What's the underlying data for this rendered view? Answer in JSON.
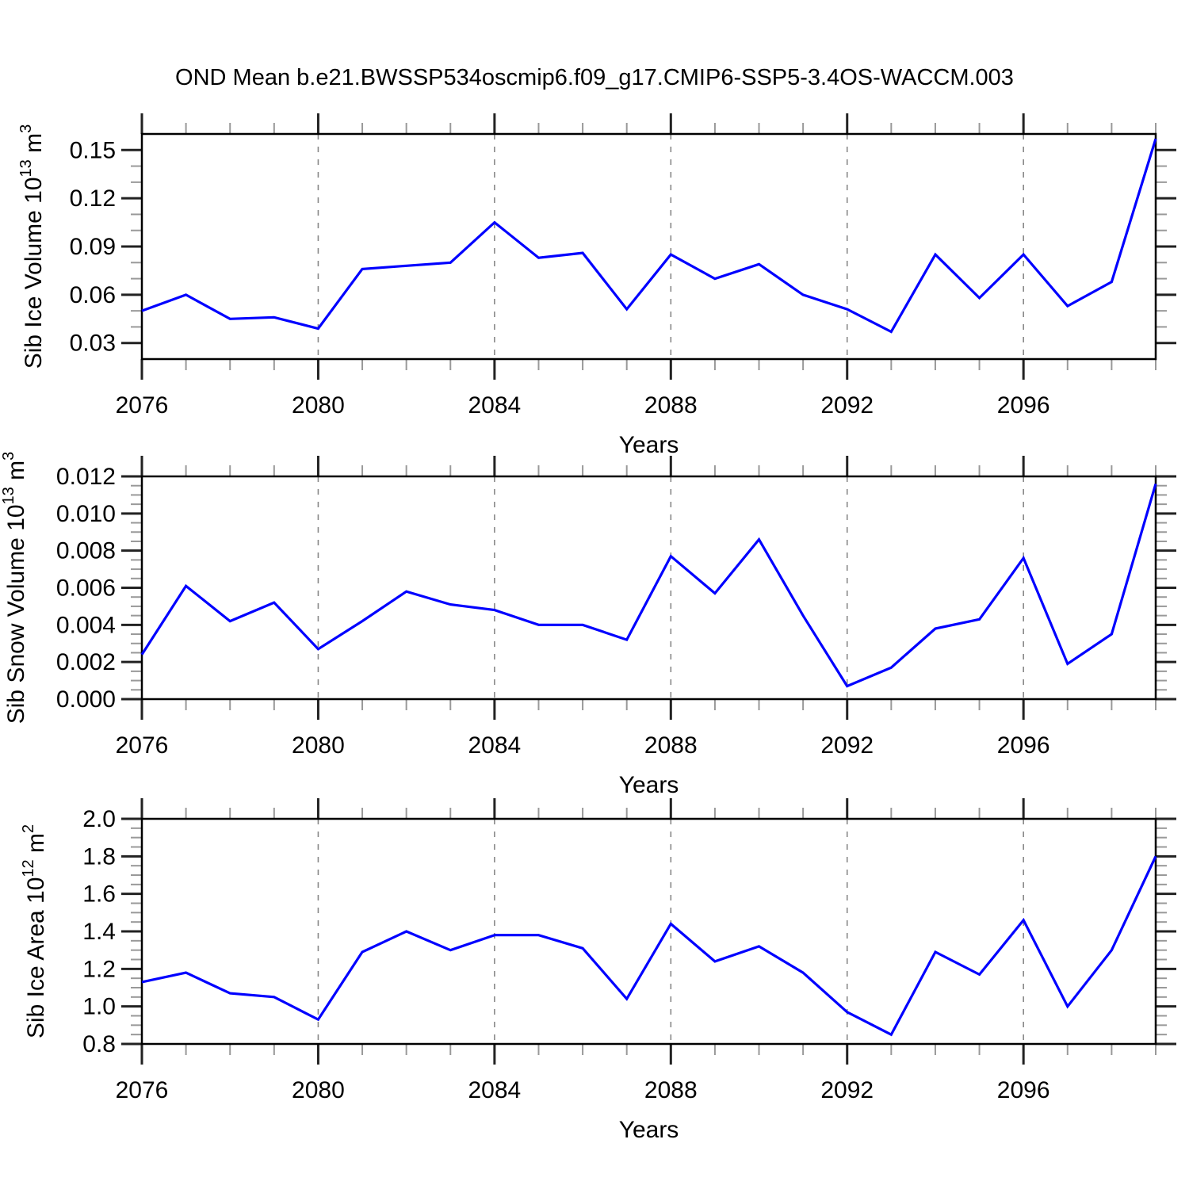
{
  "title": "OND Mean b.e21.BWSSP534oscmip6.f09_g17.CMIP6-SSP5-3.4OS-WACCM.003",
  "style": {
    "line_color": "#0000ff",
    "grid_color": "#888888",
    "axis_color": "#000000",
    "tick_major_color": "#222222",
    "tick_minor_color": "#999999",
    "text_color": "#000000",
    "background": "#ffffff"
  },
  "chart_data": [
    {
      "type": "line",
      "ylabel": "Sib Ice Volume 10¹³ m³",
      "ylabel_parts": [
        {
          "text": "Sib Ice Volume 10",
          "sup": false
        },
        {
          "text": "13",
          "sup": true
        },
        {
          "text": " m",
          "sup": false
        },
        {
          "text": "3",
          "sup": true
        }
      ],
      "xlabel": "Years",
      "x": [
        2076,
        2077,
        2078,
        2079,
        2080,
        2081,
        2082,
        2083,
        2084,
        2085,
        2086,
        2087,
        2088,
        2089,
        2090,
        2091,
        2092,
        2093,
        2094,
        2095,
        2096,
        2097,
        2098,
        2099
      ],
      "values": [
        0.05,
        0.06,
        0.045,
        0.046,
        0.039,
        0.076,
        0.078,
        0.08,
        0.105,
        0.083,
        0.086,
        0.051,
        0.085,
        0.07,
        0.079,
        0.06,
        0.051,
        0.037,
        0.085,
        0.058,
        0.085,
        0.053,
        0.068,
        0.157
      ],
      "xlim": [
        2076,
        2099
      ],
      "ylim": [
        0.02,
        0.16
      ],
      "ytick_values": [
        0.15,
        0.12,
        0.09,
        0.06,
        0.03
      ],
      "ytick_labels": [
        "0.15",
        "0.12",
        "0.09",
        "0.06",
        "0.03"
      ],
      "ytick_minor_step": 0.01,
      "xtick_values": [
        2076,
        2080,
        2084,
        2088,
        2092,
        2096
      ],
      "xtick_labels": [
        "2076",
        "2080",
        "2084",
        "2088",
        "2092",
        "2096"
      ],
      "xtick_minor_step": 1,
      "grid_x": [
        2080,
        2084,
        2088,
        2092,
        2096
      ],
      "grid_on": true,
      "legend": null
    },
    {
      "type": "line",
      "ylabel": "Sib Snow Volume 10¹³ m³",
      "ylabel_parts": [
        {
          "text": "Sib Snow Volume 10",
          "sup": false
        },
        {
          "text": "13",
          "sup": true
        },
        {
          "text": " m",
          "sup": false
        },
        {
          "text": "3",
          "sup": true
        }
      ],
      "xlabel": "Years",
      "x": [
        2076,
        2077,
        2078,
        2079,
        2080,
        2081,
        2082,
        2083,
        2084,
        2085,
        2086,
        2087,
        2088,
        2089,
        2090,
        2091,
        2092,
        2093,
        2094,
        2095,
        2096,
        2097,
        2098,
        2099
      ],
      "values": [
        0.0024,
        0.0061,
        0.0042,
        0.0052,
        0.0027,
        0.0042,
        0.0058,
        0.0051,
        0.0048,
        0.004,
        0.004,
        0.0032,
        0.0077,
        0.0057,
        0.0086,
        0.0045,
        0.0007,
        0.0017,
        0.0038,
        0.0043,
        0.0076,
        0.0019,
        0.0035,
        0.0116
      ],
      "xlim": [
        2076,
        2099
      ],
      "ylim": [
        0.0,
        0.012
      ],
      "ytick_values": [
        0.012,
        0.01,
        0.008,
        0.006,
        0.004,
        0.002,
        0.0
      ],
      "ytick_labels": [
        "0.012",
        "0.010",
        "0.008",
        "0.006",
        "0.004",
        "0.002",
        "0.000"
      ],
      "ytick_minor_step": 0.0005,
      "xtick_values": [
        2076,
        2080,
        2084,
        2088,
        2092,
        2096
      ],
      "xtick_labels": [
        "2076",
        "2080",
        "2084",
        "2088",
        "2092",
        "2096"
      ],
      "xtick_minor_step": 1,
      "grid_x": [
        2080,
        2084,
        2088,
        2092,
        2096
      ],
      "grid_on": true,
      "legend": null
    },
    {
      "type": "line",
      "ylabel": "Sib Ice Area 10¹² m²",
      "ylabel_parts": [
        {
          "text": "Sib Ice Area 10",
          "sup": false
        },
        {
          "text": "12",
          "sup": true
        },
        {
          "text": " m",
          "sup": false
        },
        {
          "text": "2",
          "sup": true
        }
      ],
      "xlabel": "Years",
      "x": [
        2076,
        2077,
        2078,
        2079,
        2080,
        2081,
        2082,
        2083,
        2084,
        2085,
        2086,
        2087,
        2088,
        2089,
        2090,
        2091,
        2092,
        2093,
        2094,
        2095,
        2096,
        2097,
        2098,
        2099
      ],
      "values": [
        1.13,
        1.18,
        1.07,
        1.05,
        0.93,
        1.29,
        1.4,
        1.3,
        1.38,
        1.38,
        1.31,
        1.04,
        1.44,
        1.24,
        1.32,
        1.18,
        0.97,
        0.85,
        1.29,
        1.17,
        1.46,
        1.0,
        1.3,
        1.8
      ],
      "xlim": [
        2076,
        2099
      ],
      "ylim": [
        0.8,
        2.0
      ],
      "ytick_values": [
        2.0,
        1.8,
        1.6,
        1.4,
        1.2,
        1.0,
        0.8
      ],
      "ytick_labels": [
        "2.0",
        "1.8",
        "1.6",
        "1.4",
        "1.2",
        "1.0",
        "0.8"
      ],
      "ytick_minor_step": 0.05,
      "xtick_values": [
        2076,
        2080,
        2084,
        2088,
        2092,
        2096
      ],
      "xtick_labels": [
        "2076",
        "2080",
        "2084",
        "2088",
        "2092",
        "2096"
      ],
      "xtick_minor_step": 1,
      "grid_x": [
        2080,
        2084,
        2088,
        2092,
        2096
      ],
      "grid_on": true,
      "legend": null
    }
  ]
}
